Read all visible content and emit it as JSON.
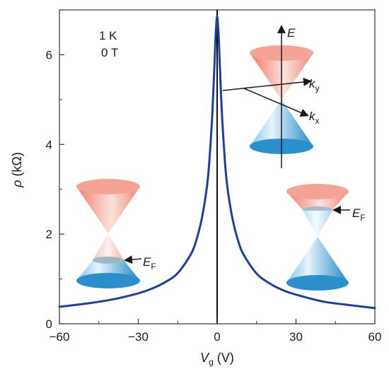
{
  "chart_data": {
    "type": "line",
    "xlabel": {
      "main": "V",
      "sub": "g",
      "unit": " (V)"
    },
    "ylabel": {
      "main": "ρ",
      "unit": " (kΩ)"
    },
    "xlim": [
      -60,
      60
    ],
    "ylim": [
      0,
      7
    ],
    "x_ticks": [
      "−60",
      "−30",
      "0",
      "30",
      "60"
    ],
    "x_tick_values": [
      -60,
      -30,
      0,
      30,
      60
    ],
    "y_ticks": [
      "0",
      "2",
      "4",
      "6"
    ],
    "y_tick_values": [
      0,
      2,
      4,
      6
    ],
    "grid": false,
    "line_color": "#1f3f9a",
    "conditions": [
      "1 K",
      "0 T"
    ],
    "series": [
      {
        "x": [
          -60,
          -50,
          -40,
          -30,
          -25,
          -20,
          -15,
          -10,
          -8,
          -6,
          -4,
          -3,
          -2,
          -1.5,
          -1,
          -0.5,
          0,
          0.5,
          1,
          1.5,
          2,
          3,
          4,
          6,
          8,
          10,
          15,
          20,
          25,
          30,
          40,
          50,
          60
        ],
        "y": [
          0.38,
          0.45,
          0.54,
          0.68,
          0.78,
          0.92,
          1.13,
          1.55,
          1.85,
          2.3,
          3.0,
          3.6,
          4.5,
          5.1,
          5.8,
          6.5,
          6.85,
          6.5,
          5.8,
          5.1,
          4.5,
          3.6,
          3.0,
          2.3,
          1.85,
          1.55,
          1.12,
          0.9,
          0.75,
          0.65,
          0.5,
          0.42,
          0.35
        ]
      }
    ],
    "annotations": {
      "energy_axis": "E",
      "k_y": {
        "main": "k",
        "sub": "y"
      },
      "k_x": {
        "main": "k",
        "sub": "x"
      },
      "fermi_left": {
        "main": "E",
        "sub": "F"
      },
      "fermi_right": {
        "main": "E",
        "sub": "F"
      }
    },
    "colors": {
      "upper_cone": "#f08878",
      "lower_cone": "#2f93cf"
    }
  }
}
